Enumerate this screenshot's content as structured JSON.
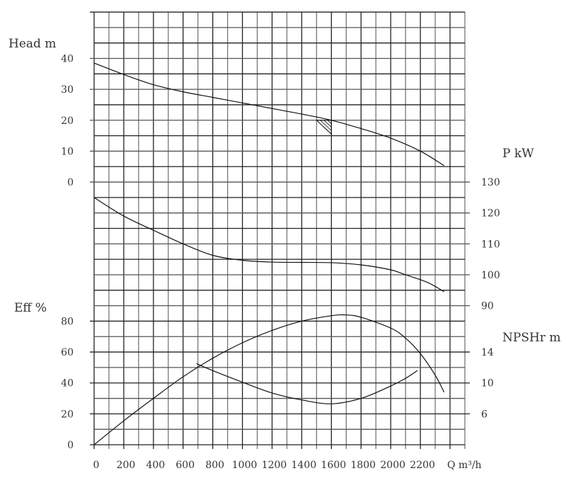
{
  "chart_data": {
    "type": "line",
    "x": {
      "label": "Q m³/h",
      "range": [
        0,
        2500
      ],
      "ticks": [
        0,
        200,
        400,
        600,
        800,
        1000,
        1200,
        1400,
        1600,
        1800,
        2000,
        2200
      ]
    },
    "grid": true,
    "axes": {
      "head": {
        "label": "Head m",
        "side": "left",
        "ticks": [
          0,
          10,
          20,
          30,
          40
        ],
        "range": [
          0,
          55
        ]
      },
      "power": {
        "label": "P kW",
        "side": "right",
        "ticks": [
          90,
          100,
          110,
          120,
          130
        ]
      },
      "eff": {
        "label": "Eff %",
        "side": "left",
        "ticks": [
          0,
          20,
          40,
          60,
          80
        ]
      },
      "npsh": {
        "label": "NPSHr m",
        "side": "right",
        "ticks": [
          6,
          10,
          14
        ]
      }
    },
    "series": [
      {
        "axis": "head",
        "points": [
          [
            0,
            38.5
          ],
          [
            200,
            34.8
          ],
          [
            400,
            31.5
          ],
          [
            600,
            29.2
          ],
          [
            800,
            27.4
          ],
          [
            1000,
            25.6
          ],
          [
            1200,
            23.8
          ],
          [
            1400,
            22
          ],
          [
            1600,
            20
          ],
          [
            1800,
            17.3
          ],
          [
            2000,
            14.2
          ],
          [
            2200,
            10
          ],
          [
            2360,
            5.3
          ]
        ]
      },
      {
        "axis": "power",
        "points": [
          [
            0,
            125
          ],
          [
            200,
            119
          ],
          [
            400,
            114.4
          ],
          [
            600,
            110
          ],
          [
            800,
            106.3
          ],
          [
            1000,
            104.7
          ],
          [
            1200,
            104.1
          ],
          [
            1400,
            104
          ],
          [
            1600,
            103.9
          ],
          [
            1800,
            103.2
          ],
          [
            2000,
            101.6
          ],
          [
            2100,
            100
          ],
          [
            2250,
            97.5
          ],
          [
            2360,
            94.5
          ]
        ]
      },
      {
        "axis": "eff",
        "points": [
          [
            0,
            0
          ],
          [
            200,
            15.5
          ],
          [
            400,
            30
          ],
          [
            600,
            44
          ],
          [
            800,
            56
          ],
          [
            1000,
            66
          ],
          [
            1200,
            74
          ],
          [
            1400,
            80
          ],
          [
            1600,
            83.5
          ],
          [
            1700,
            84
          ],
          [
            1800,
            82.5
          ],
          [
            2000,
            75.5
          ],
          [
            2100,
            69
          ],
          [
            2200,
            59
          ],
          [
            2300,
            45
          ],
          [
            2360,
            34
          ]
        ]
      },
      {
        "axis": "npsh",
        "points": [
          [
            690,
            12.5
          ],
          [
            800,
            11.6
          ],
          [
            1000,
            10.1
          ],
          [
            1200,
            8.7
          ],
          [
            1400,
            7.8
          ],
          [
            1600,
            7.3
          ],
          [
            1800,
            8
          ],
          [
            2000,
            9.6
          ],
          [
            2100,
            10.6
          ],
          [
            2180,
            11.6
          ]
        ]
      }
    ],
    "duty_point_marker": {
      "axis": "head",
      "points": [
        [
          1500,
          20
        ],
        [
          1600,
          20
        ],
        [
          1600,
          15.5
        ]
      ]
    }
  }
}
